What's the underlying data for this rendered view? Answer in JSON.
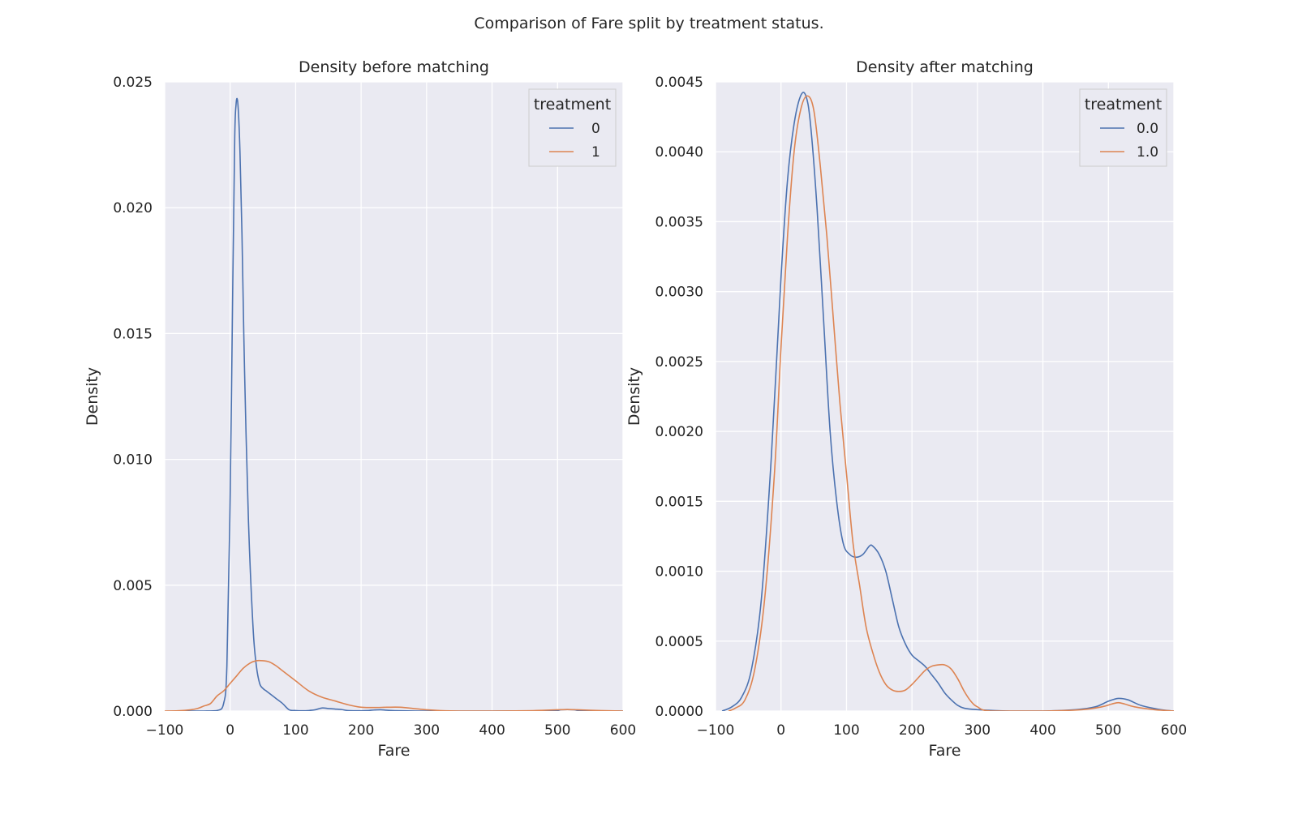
{
  "figure": {
    "suptitle": "Comparison of Fare split by treatment status."
  },
  "chart_data": [
    {
      "type": "line",
      "title": "Density before matching",
      "xlabel": "Fare",
      "ylabel": "Density",
      "xlim": [
        -100,
        600
      ],
      "ylim": [
        0,
        0.025
      ],
      "xticks": [
        -100,
        0,
        100,
        200,
        300,
        400,
        500,
        600
      ],
      "xtick_labels": [
        "−100",
        "0",
        "100",
        "200",
        "300",
        "400",
        "500",
        "600"
      ],
      "yticks": [
        0,
        0.005,
        0.01,
        0.015,
        0.02,
        0.025
      ],
      "ytick_labels": [
        "0.000",
        "0.005",
        "0.010",
        "0.015",
        "0.020",
        "0.025"
      ],
      "grid": true,
      "legend": {
        "title": "treatment",
        "position": "top-right"
      },
      "series": [
        {
          "name": "0",
          "color": "#4c72b0",
          "x": [
            -80,
            -40,
            -20,
            -10,
            -5,
            0,
            4,
            7,
            9,
            11,
            13,
            15,
            18,
            22,
            28,
            35,
            40,
            45,
            50,
            55,
            60,
            70,
            80,
            90,
            100,
            110,
            120,
            130,
            140,
            150,
            160,
            170,
            180,
            200,
            210,
            220,
            230,
            240,
            260,
            300,
            400,
            490,
            505,
            515,
            525,
            540,
            600
          ],
          "y": [
            0,
            0,
            2e-05,
            0.0003,
            0.0018,
            0.0085,
            0.017,
            0.0228,
            0.0241,
            0.0243,
            0.0236,
            0.0222,
            0.019,
            0.0135,
            0.0075,
            0.0033,
            0.0018,
            0.0011,
            0.0009,
            0.0008,
            0.0007,
            0.0005,
            0.0003,
            5e-05,
            2e-05,
            1e-05,
            2e-05,
            5e-05,
            0.00012,
            0.0001,
            8e-05,
            6e-05,
            2e-05,
            1e-05,
            2e-05,
            4e-05,
            5e-05,
            3e-05,
            1e-05,
            0,
            0,
            1e-05,
            5e-05,
            6e-05,
            5e-05,
            1e-05,
            0
          ]
        },
        {
          "name": "1",
          "color": "#dd8452",
          "x": [
            -100,
            -80,
            -60,
            -50,
            -40,
            -30,
            -20,
            -10,
            0,
            10,
            20,
            30,
            40,
            50,
            60,
            70,
            80,
            100,
            120,
            140,
            160,
            180,
            200,
            220,
            240,
            260,
            280,
            300,
            320,
            350,
            400,
            450,
            480,
            500,
            515,
            530,
            550,
            580,
            600
          ],
          "y": [
            0,
            1e-05,
            5e-05,
            0.0001,
            0.0002,
            0.0003,
            0.0006,
            0.0008,
            0.0011,
            0.0014,
            0.0017,
            0.0019,
            0.002,
            0.002,
            0.00195,
            0.0018,
            0.0016,
            0.0012,
            0.0008,
            0.00055,
            0.0004,
            0.00025,
            0.00015,
            0.00014,
            0.00015,
            0.00015,
            0.0001,
            5e-05,
            2e-05,
            0,
            0,
            1e-05,
            3e-05,
            5e-05,
            6e-05,
            5e-05,
            3e-05,
            1e-05,
            0
          ]
        }
      ]
    },
    {
      "type": "line",
      "title": "Density after matching",
      "xlabel": "Fare",
      "ylabel": "Density",
      "xlim": [
        -100,
        600
      ],
      "ylim": [
        0,
        0.0045
      ],
      "xticks": [
        -100,
        0,
        100,
        200,
        300,
        400,
        500,
        600
      ],
      "xtick_labels": [
        "−100",
        "0",
        "100",
        "200",
        "300",
        "400",
        "500",
        "600"
      ],
      "yticks": [
        0,
        0.0005,
        0.001,
        0.0015,
        0.002,
        0.0025,
        0.003,
        0.0035,
        0.004,
        0.0045
      ],
      "ytick_labels": [
        "0.0000",
        "0.0005",
        "0.0010",
        "0.0015",
        "0.0020",
        "0.0025",
        "0.0030",
        "0.0035",
        "0.0040",
        "0.0045"
      ],
      "grid": true,
      "legend": {
        "title": "treatment",
        "position": "top-right"
      },
      "series": [
        {
          "name": "0.0",
          "color": "#4c72b0",
          "x": [
            -90,
            -75,
            -60,
            -45,
            -30,
            -15,
            0,
            10,
            20,
            30,
            38,
            45,
            55,
            65,
            75,
            85,
            95,
            105,
            115,
            125,
            135,
            140,
            150,
            160,
            170,
            180,
            190,
            200,
            210,
            220,
            230,
            240,
            250,
            260,
            270,
            280,
            300,
            350,
            400,
            450,
            480,
            500,
            515,
            530,
            550,
            580,
            600
          ],
          "y": [
            0,
            3e-05,
            0.0001,
            0.0003,
            0.0008,
            0.0018,
            0.0031,
            0.0038,
            0.0042,
            0.0044,
            0.0044,
            0.0042,
            0.0036,
            0.0028,
            0.002,
            0.0015,
            0.0012,
            0.00112,
            0.0011,
            0.00112,
            0.00118,
            0.00118,
            0.00112,
            0.001,
            0.0008,
            0.0006,
            0.00048,
            0.0004,
            0.00036,
            0.00032,
            0.00026,
            0.0002,
            0.00013,
            8e-05,
            4e-05,
            2e-05,
            1e-05,
            0,
            0,
            1e-05,
            3e-05,
            7e-05,
            9e-05,
            8e-05,
            4e-05,
            1e-05,
            0
          ]
        },
        {
          "name": "1.0",
          "color": "#dd8452",
          "x": [
            -80,
            -70,
            -55,
            -40,
            -25,
            -10,
            0,
            10,
            20,
            30,
            40,
            50,
            60,
            70,
            80,
            90,
            100,
            110,
            120,
            130,
            140,
            150,
            160,
            170,
            180,
            190,
            200,
            210,
            220,
            230,
            240,
            250,
            260,
            270,
            280,
            290,
            300,
            320,
            400,
            460,
            490,
            505,
            515,
            525,
            540,
            570,
            600
          ],
          "y": [
            0,
            2e-05,
            8e-05,
            0.0003,
            0.0008,
            0.0017,
            0.0026,
            0.0034,
            0.004,
            0.0043,
            0.0044,
            0.0043,
            0.0039,
            0.0034,
            0.0028,
            0.0022,
            0.0017,
            0.0012,
            0.0009,
            0.0006,
            0.00042,
            0.00028,
            0.00019,
            0.00015,
            0.00014,
            0.00015,
            0.00019,
            0.00024,
            0.00029,
            0.00032,
            0.00033,
            0.00033,
            0.0003,
            0.00023,
            0.00014,
            7e-05,
            3e-05,
            0,
            0,
            1e-05,
            3e-05,
            5e-05,
            6e-05,
            5e-05,
            3e-05,
            1e-05,
            0
          ]
        }
      ]
    }
  ]
}
